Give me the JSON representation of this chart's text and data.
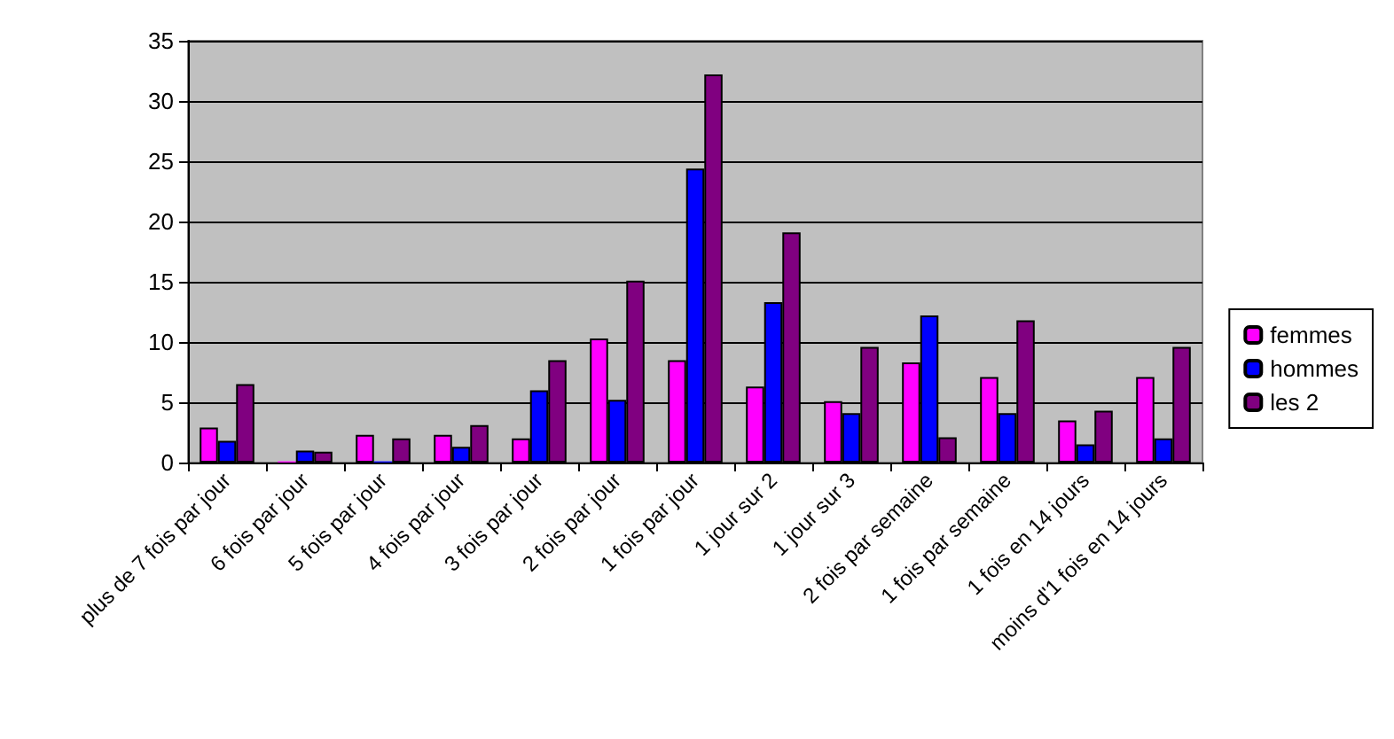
{
  "chart_data": {
    "type": "bar",
    "categories": [
      "plus de 7 fois par jour",
      "6 fois par jour",
      "5 fois par jour",
      "4 fois par jour",
      "3 fois par jour",
      "2 fois par jour",
      "1 fois par jour",
      "1 jour sur 2",
      "1 jour sur 3",
      "2 fois par semaine",
      "1 fois par semaine",
      "1 fois en 14 jours",
      "moins d'1 fois en 14 jours"
    ],
    "series": [
      {
        "name": "femmes",
        "color": "#ff00ff",
        "values": [
          2.9,
          0.1,
          2.3,
          2.3,
          2.0,
          10.3,
          8.5,
          6.3,
          5.1,
          8.3,
          7.1,
          3.5,
          7.1
        ]
      },
      {
        "name": "hommes",
        "color": "#0000ff",
        "values": [
          1.8,
          1.0,
          0.1,
          1.3,
          6.0,
          5.2,
          24.4,
          13.3,
          4.1,
          12.2,
          4.1,
          1.5,
          2.0
        ]
      },
      {
        "name": "les 2",
        "color": "#800080",
        "values": [
          6.5,
          0.9,
          2.0,
          3.1,
          8.5,
          15.1,
          32.2,
          19.1,
          9.6,
          2.1,
          11.8,
          4.3,
          9.6
        ]
      }
    ],
    "ylim": [
      0,
      35
    ],
    "yticks": [
      0,
      5,
      10,
      15,
      20,
      25,
      30,
      35
    ],
    "grid": "y",
    "legend": "right"
  }
}
